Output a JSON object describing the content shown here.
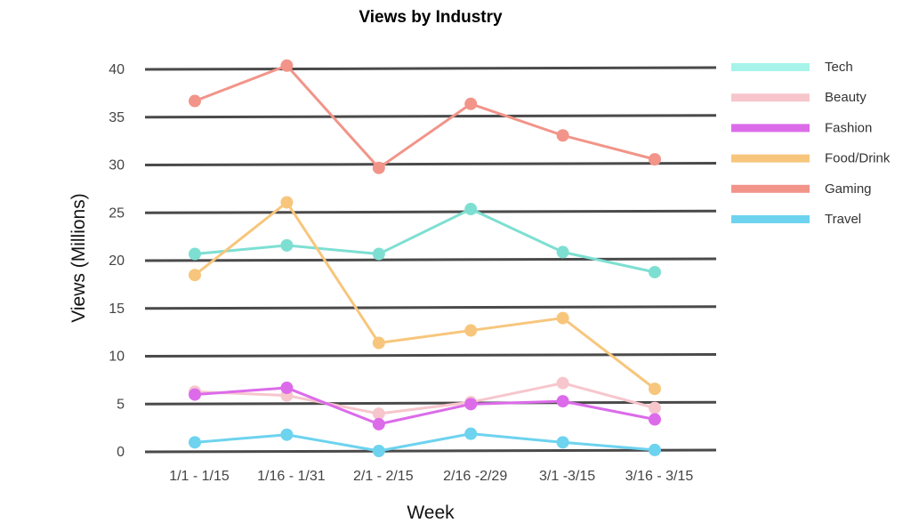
{
  "chart_data": {
    "type": "line",
    "title": "Views by Industry",
    "xlabel": "Week",
    "ylabel": "Views (Millions)",
    "categories": [
      "1/1 - 1/15",
      "1/16 - 1/31",
      "2/1 - 2/15",
      "2/16 -2/29",
      "3/1 -3/15",
      "3/16 - 3/15"
    ],
    "ylim": [
      0,
      40
    ],
    "yticks": [
      0,
      5,
      10,
      15,
      20,
      25,
      30,
      35,
      40
    ],
    "grid": true,
    "legend_position": "right",
    "series": [
      {
        "name": "Tech",
        "color": "#7ddfd2",
        "legend_color": "#a6f3ea",
        "values": [
          20.6,
          21.5,
          20.6,
          25.3,
          20.8,
          18.7
        ]
      },
      {
        "name": "Beauty",
        "color": "#f7c6cd",
        "legend_color": "#f7c6cd",
        "values": [
          6.2,
          5.8,
          3.9,
          5.1,
          7.1,
          4.5
        ]
      },
      {
        "name": "Fashion",
        "color": "#dc6bea",
        "legend_color": "#dc6bea",
        "values": [
          5.9,
          6.6,
          2.8,
          4.9,
          5.2,
          3.3
        ]
      },
      {
        "name": "Food/Drink",
        "color": "#f7c67c",
        "legend_color": "#f7c67c",
        "values": [
          18.4,
          26.0,
          11.3,
          12.6,
          13.9,
          6.5
        ]
      },
      {
        "name": "Gaming",
        "color": "#f29489",
        "legend_color": "#f29489",
        "values": [
          36.6,
          40.3,
          29.6,
          36.3,
          33.0,
          30.5
        ]
      },
      {
        "name": "Travel",
        "color": "#6dd3ef",
        "legend_color": "#6dd3ef",
        "values": [
          0.9,
          1.7,
          0.0,
          1.8,
          0.9,
          0.1
        ]
      }
    ]
  }
}
